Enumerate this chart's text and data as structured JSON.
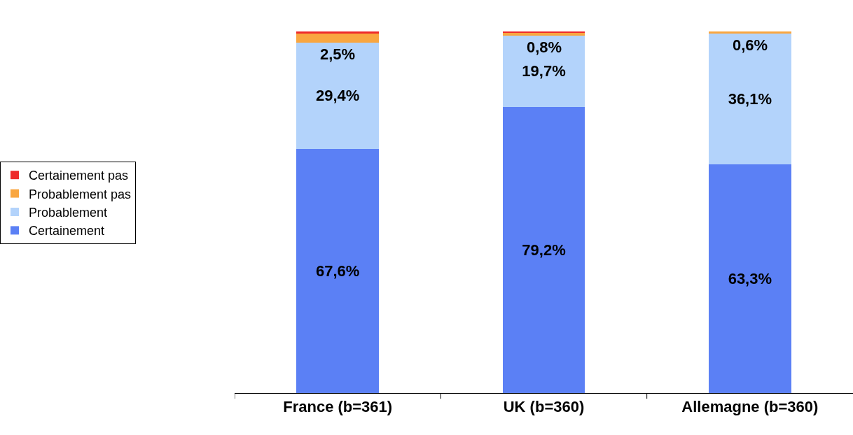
{
  "chart_data": {
    "type": "bar",
    "stacked": true,
    "categories": [
      "France (b=361)",
      "UK (b=360)",
      "Allemagne (b=360)"
    ],
    "series": [
      {
        "name": "Certainement",
        "color": "#5b80f5",
        "values": [
          67.6,
          79.2,
          63.3
        ],
        "value_labels": [
          "67,6%",
          "79,2%",
          "63,3%"
        ]
      },
      {
        "name": "Probablement",
        "color": "#b3d3fb",
        "values": [
          29.4,
          19.7,
          36.1
        ],
        "value_labels": [
          "29,4%",
          "19,7%",
          "36,1%"
        ]
      },
      {
        "name": "Probablement pas",
        "color": "#f9a640",
        "values": [
          2.5,
          0.8,
          0.6
        ],
        "value_labels": [
          "2,5%",
          "0,8%",
          "0,6%"
        ]
      },
      {
        "name": "Certainement pas",
        "color": "#ee2a2a",
        "values": [
          0.5,
          0.3,
          0.0
        ],
        "value_labels": [
          null,
          null,
          null
        ]
      }
    ],
    "legend": "left",
    "tick_labels": "x"
  }
}
